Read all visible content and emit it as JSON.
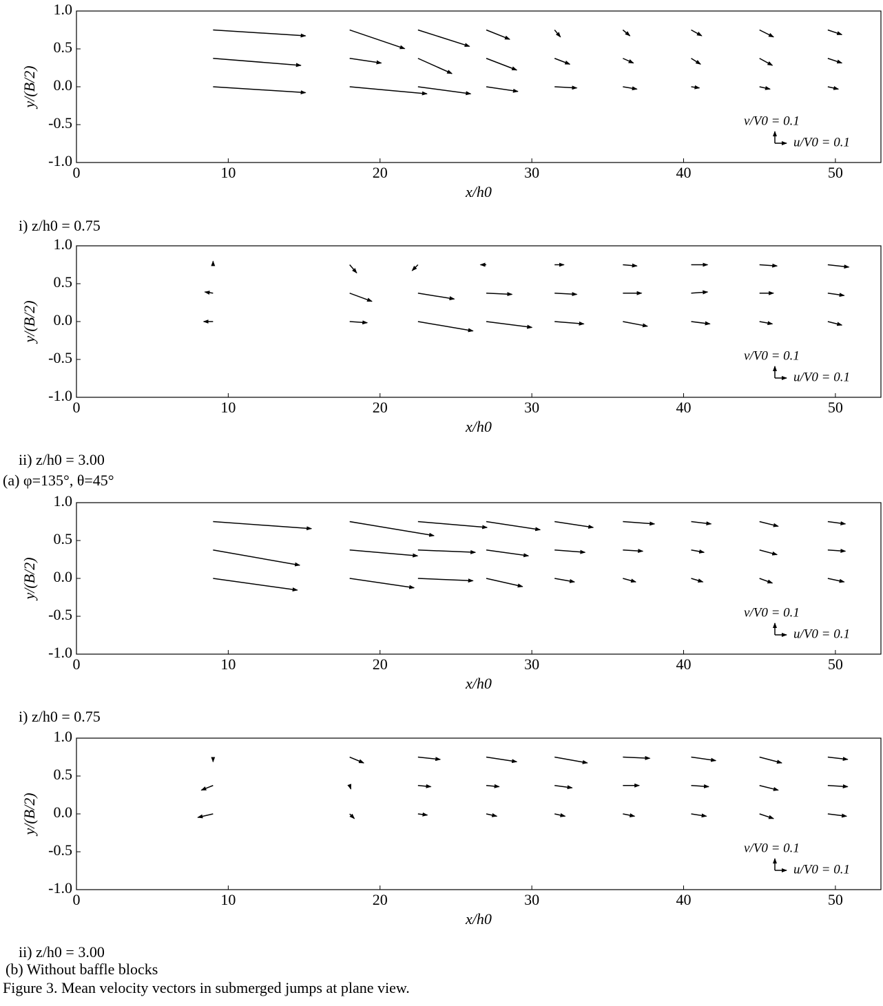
{
  "chart_data": [
    {
      "type": "quiver",
      "caption": "i) z/h0 = 0.75",
      "xlabel": "x/h0",
      "ylabel": "y/(B/2)",
      "xlim": [
        0,
        53
      ],
      "ylim": [
        -1,
        1
      ],
      "xticks": [
        0,
        10,
        20,
        30,
        40,
        50
      ],
      "yticks": [
        {
          "value": 1,
          "label": "1.0"
        },
        {
          "value": 0.5,
          "label": "0.5"
        },
        {
          "value": 0,
          "label": "0.0"
        },
        {
          "value": -0.5,
          "label": "-0.5"
        },
        {
          "value": -1,
          "label": "-1.0"
        }
      ],
      "key_length": 0.1,
      "key_u_label": "u/V0 = 0.1",
      "key_v_label": "v/V0 = 0.1",
      "color": "#000000",
      "x": [
        9,
        18,
        22.5,
        27,
        31.5,
        36,
        40.5,
        45,
        49.5,
        9,
        18,
        22.5,
        27,
        31.5,
        36,
        40.5,
        45,
        49.5,
        9,
        18,
        22.5,
        27,
        31.5,
        36,
        40.5,
        45,
        49.5
      ],
      "y": [
        0.75,
        0.75,
        0.75,
        0.75,
        0.75,
        0.75,
        0.75,
        0.75,
        0.75,
        0.375,
        0.375,
        0.375,
        0.375,
        0.375,
        0.375,
        0.375,
        0.375,
        0.375,
        0,
        0,
        0,
        0,
        0,
        0,
        0,
        0,
        0
      ],
      "u": [
        0.79,
        0.47,
        0.44,
        0.2,
        0.05,
        0.06,
        0.09,
        0.12,
        0.12,
        0.75,
        0.27,
        0.29,
        0.26,
        0.13,
        0.09,
        0.08,
        0.11,
        0.12,
        0.79,
        0.66,
        0.45,
        0.27,
        0.19,
        0.12,
        0.07,
        0.09,
        0.09
      ],
      "v": [
        -0.05,
        -0.16,
        -0.14,
        -0.08,
        -0.06,
        -0.05,
        -0.05,
        -0.06,
        -0.04,
        -0.06,
        -0.04,
        -0.13,
        -0.1,
        -0.05,
        -0.04,
        -0.05,
        -0.06,
        -0.04,
        -0.05,
        -0.06,
        -0.06,
        -0.04,
        -0.01,
        -0.02,
        -0.01,
        -0.02,
        -0.02
      ]
    },
    {
      "type": "quiver",
      "caption": "ii) z/h0 = 3.00",
      "xlabel": "x/h0",
      "ylabel": "y/(B/2)",
      "xlim": [
        0,
        53
      ],
      "ylim": [
        -1,
        1
      ],
      "xticks": [
        0,
        10,
        20,
        30,
        40,
        50
      ],
      "yticks": [
        {
          "value": 1,
          "label": "1.0"
        },
        {
          "value": 0.5,
          "label": "0.5"
        },
        {
          "value": 0,
          "label": "0.0"
        },
        {
          "value": -0.5,
          "label": "-0.5"
        },
        {
          "value": -1,
          "label": "-1.0"
        }
      ],
      "key_length": 0.1,
      "key_u_label": "u/V0 = 0.1",
      "key_v_label": "v/V0 = 0.1",
      "color": "#000000",
      "x": [
        9,
        18,
        22.5,
        27,
        31.5,
        36,
        40.5,
        45,
        49.5,
        9,
        18,
        22.5,
        27,
        31.5,
        36,
        40.5,
        45,
        49.5,
        9,
        18,
        22.5,
        27,
        31.5,
        36,
        40.5,
        45,
        49.5
      ],
      "y": [
        0.75,
        0.75,
        0.75,
        0.75,
        0.75,
        0.75,
        0.75,
        0.75,
        0.75,
        0.375,
        0.375,
        0.375,
        0.375,
        0.375,
        0.375,
        0.375,
        0.375,
        0.375,
        0,
        0,
        0,
        0,
        0,
        0,
        0,
        0,
        0
      ],
      "u": [
        0,
        0.06,
        -0.05,
        -0.05,
        0.08,
        0.12,
        0.14,
        0.15,
        0.18,
        -0.07,
        0.19,
        0.31,
        0.22,
        0.19,
        0.16,
        0.14,
        0.12,
        0.14,
        -0.08,
        0.15,
        0.47,
        0.39,
        0.25,
        0.21,
        0.16,
        0.11,
        0.12
      ],
      "v": [
        0.03,
        -0.07,
        -0.05,
        0,
        0,
        -0.01,
        0,
        -0.01,
        -0.02,
        0.01,
        -0.07,
        -0.05,
        -0.01,
        -0.01,
        0,
        0.01,
        0,
        -0.02,
        0,
        -0.01,
        -0.08,
        -0.05,
        -0.02,
        -0.04,
        -0.02,
        -0.02,
        -0.03
      ]
    },
    {
      "type": "quiver",
      "caption": "i) z/h0 = 0.75",
      "xlabel": "x/h0",
      "ylabel": "y/(B/2)",
      "xlim": [
        0,
        53
      ],
      "ylim": [
        -1,
        1
      ],
      "xticks": [
        0,
        10,
        20,
        30,
        40,
        50
      ],
      "yticks": [
        {
          "value": 1,
          "label": "1.0"
        },
        {
          "value": 0.5,
          "label": "0.5"
        },
        {
          "value": 0,
          "label": "0.0"
        },
        {
          "value": -0.5,
          "label": "-0.5"
        },
        {
          "value": -1,
          "label": "-1.0"
        }
      ],
      "key_length": 0.1,
      "key_u_label": "u/V0 = 0.1",
      "key_v_label": "v/V0 = 0.1",
      "color": "#000000",
      "x": [
        9,
        18,
        22.5,
        27,
        31.5,
        36,
        40.5,
        45,
        49.5,
        9,
        18,
        22.5,
        27,
        31.5,
        36,
        40.5,
        45,
        49.5,
        9,
        18,
        22.5,
        27,
        31.5,
        36,
        40.5,
        45,
        49.5
      ],
      "y": [
        0.75,
        0.75,
        0.75,
        0.75,
        0.75,
        0.75,
        0.75,
        0.75,
        0.75,
        0.375,
        0.375,
        0.375,
        0.375,
        0.375,
        0.375,
        0.375,
        0.375,
        0.375,
        0,
        0,
        0,
        0,
        0,
        0,
        0,
        0,
        0
      ],
      "u": [
        0.84,
        0.72,
        0.59,
        0.46,
        0.33,
        0.27,
        0.17,
        0.16,
        0.15,
        0.74,
        0.58,
        0.49,
        0.36,
        0.26,
        0.17,
        0.11,
        0.15,
        0.15,
        0.72,
        0.55,
        0.47,
        0.31,
        0.17,
        0.11,
        0.1,
        0.11,
        0.14
      ],
      "v": [
        -0.06,
        -0.12,
        -0.05,
        -0.07,
        -0.05,
        -0.02,
        -0.02,
        -0.04,
        -0.02,
        -0.13,
        -0.05,
        -0.02,
        -0.05,
        -0.02,
        -0.01,
        -0.02,
        -0.04,
        -0.01,
        -0.1,
        -0.08,
        -0.02,
        -0.07,
        -0.03,
        -0.03,
        -0.03,
        -0.04,
        -0.03
      ]
    },
    {
      "type": "quiver",
      "caption": "ii) z/h0 = 3.00",
      "xlabel": "x/h0",
      "ylabel": "y/(B/2)",
      "xlim": [
        0,
        53
      ],
      "ylim": [
        -1,
        1
      ],
      "xticks": [
        0,
        10,
        20,
        30,
        40,
        50
      ],
      "yticks": [
        {
          "value": 1,
          "label": "1.0"
        },
        {
          "value": 0.5,
          "label": "0.5"
        },
        {
          "value": 0,
          "label": "0.0"
        },
        {
          "value": -0.5,
          "label": "-0.5"
        },
        {
          "value": -1,
          "label": "-1.0"
        }
      ],
      "key_length": 0.1,
      "key_u_label": "u/V0 = 0.1",
      "key_v_label": "v/V0 = 0.1",
      "color": "#000000",
      "x": [
        9,
        18,
        22.5,
        27,
        31.5,
        36,
        40.5,
        45,
        49.5,
        9,
        18,
        22.5,
        27,
        31.5,
        36,
        40.5,
        45,
        49.5,
        9,
        18,
        22.5,
        27,
        31.5,
        36,
        40.5,
        45,
        49.5
      ],
      "y": [
        0.75,
        0.75,
        0.75,
        0.75,
        0.75,
        0.75,
        0.75,
        0.75,
        0.75,
        0.375,
        0.375,
        0.375,
        0.375,
        0.375,
        0.375,
        0.375,
        0.375,
        0.375,
        0,
        0,
        0,
        0,
        0,
        0,
        0,
        0,
        0
      ],
      "u": [
        0,
        0.12,
        0.19,
        0.26,
        0.28,
        0.23,
        0.21,
        0.19,
        0.17,
        -0.1,
        0.01,
        0.11,
        0.11,
        0.15,
        0.14,
        0.15,
        0.16,
        0.17,
        -0.13,
        0.04,
        0.08,
        0.09,
        0.09,
        0.1,
        0.13,
        0.12,
        0.16
      ],
      "v": [
        -0.04,
        -0.05,
        -0.02,
        -0.04,
        -0.05,
        -0.01,
        -0.03,
        -0.05,
        -0.02,
        -0.04,
        -0.03,
        -0.01,
        -0.01,
        -0.02,
        0,
        -0.01,
        -0.04,
        -0.01,
        -0.03,
        -0.04,
        -0.01,
        -0.02,
        -0.02,
        -0.02,
        -0.02,
        -0.04,
        -0.02
      ]
    }
  ],
  "figure": {
    "group_a": "(a) φ=135°, θ=45°",
    "group_b": "(b) Without baffle blocks",
    "caption": "Figure 3. Mean velocity vectors in submerged jumps at plane view."
  }
}
